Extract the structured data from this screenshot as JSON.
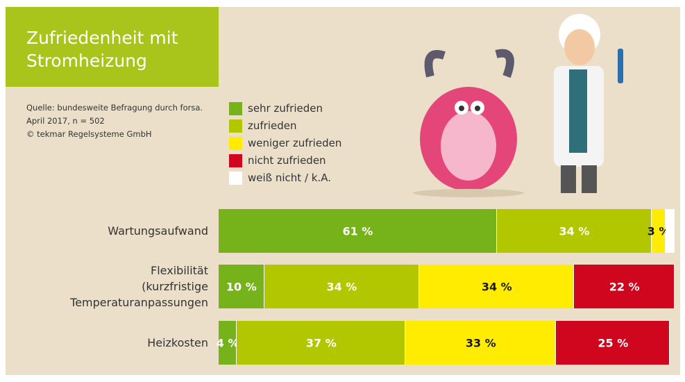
{
  "chart_data": {
    "type": "bar",
    "orientation": "horizontal",
    "stacked": true,
    "title": "Zufriedenheit mit Stromheizung",
    "source": [
      "Quelle: bundesweite Befragung durch forsa.",
      "April 2017, n = 502",
      "© tekmar Regelsysteme GmbH"
    ],
    "categories": [
      "Wartungsaufwand",
      "Flexibilität (kurzfristige Temperaturanpassungen",
      "Heizkosten"
    ],
    "xlim": [
      0,
      100
    ],
    "series": [
      {
        "name": "sehr zufrieden",
        "color": "#76b31b",
        "label_color": "#ffffff",
        "values": [
          61,
          10,
          4
        ],
        "value_labels": [
          "61 %",
          "10 %",
          "4 %"
        ]
      },
      {
        "name": "zufrieden",
        "color": "#b3c700",
        "label_color": "#ffffff",
        "values": [
          34,
          34,
          37
        ],
        "value_labels": [
          "34 %",
          "34 %",
          "37 %"
        ]
      },
      {
        "name": "weniger zufrieden",
        "color": "#ffec00",
        "label_color": "#1a1a1a",
        "values": [
          3,
          34,
          33
        ],
        "value_labels": [
          "3 %",
          "34 %",
          "33 %"
        ]
      },
      {
        "name": "nicht zufrieden",
        "color": "#d0051e",
        "label_color": "#ffffff",
        "values": [
          null,
          22,
          25
        ],
        "value_labels": [
          null,
          "22 %",
          "25 %"
        ]
      },
      {
        "name": "weiß nicht / k.A.",
        "color": "#ffffff",
        "values": [
          2,
          null,
          null
        ]
      }
    ]
  }
}
